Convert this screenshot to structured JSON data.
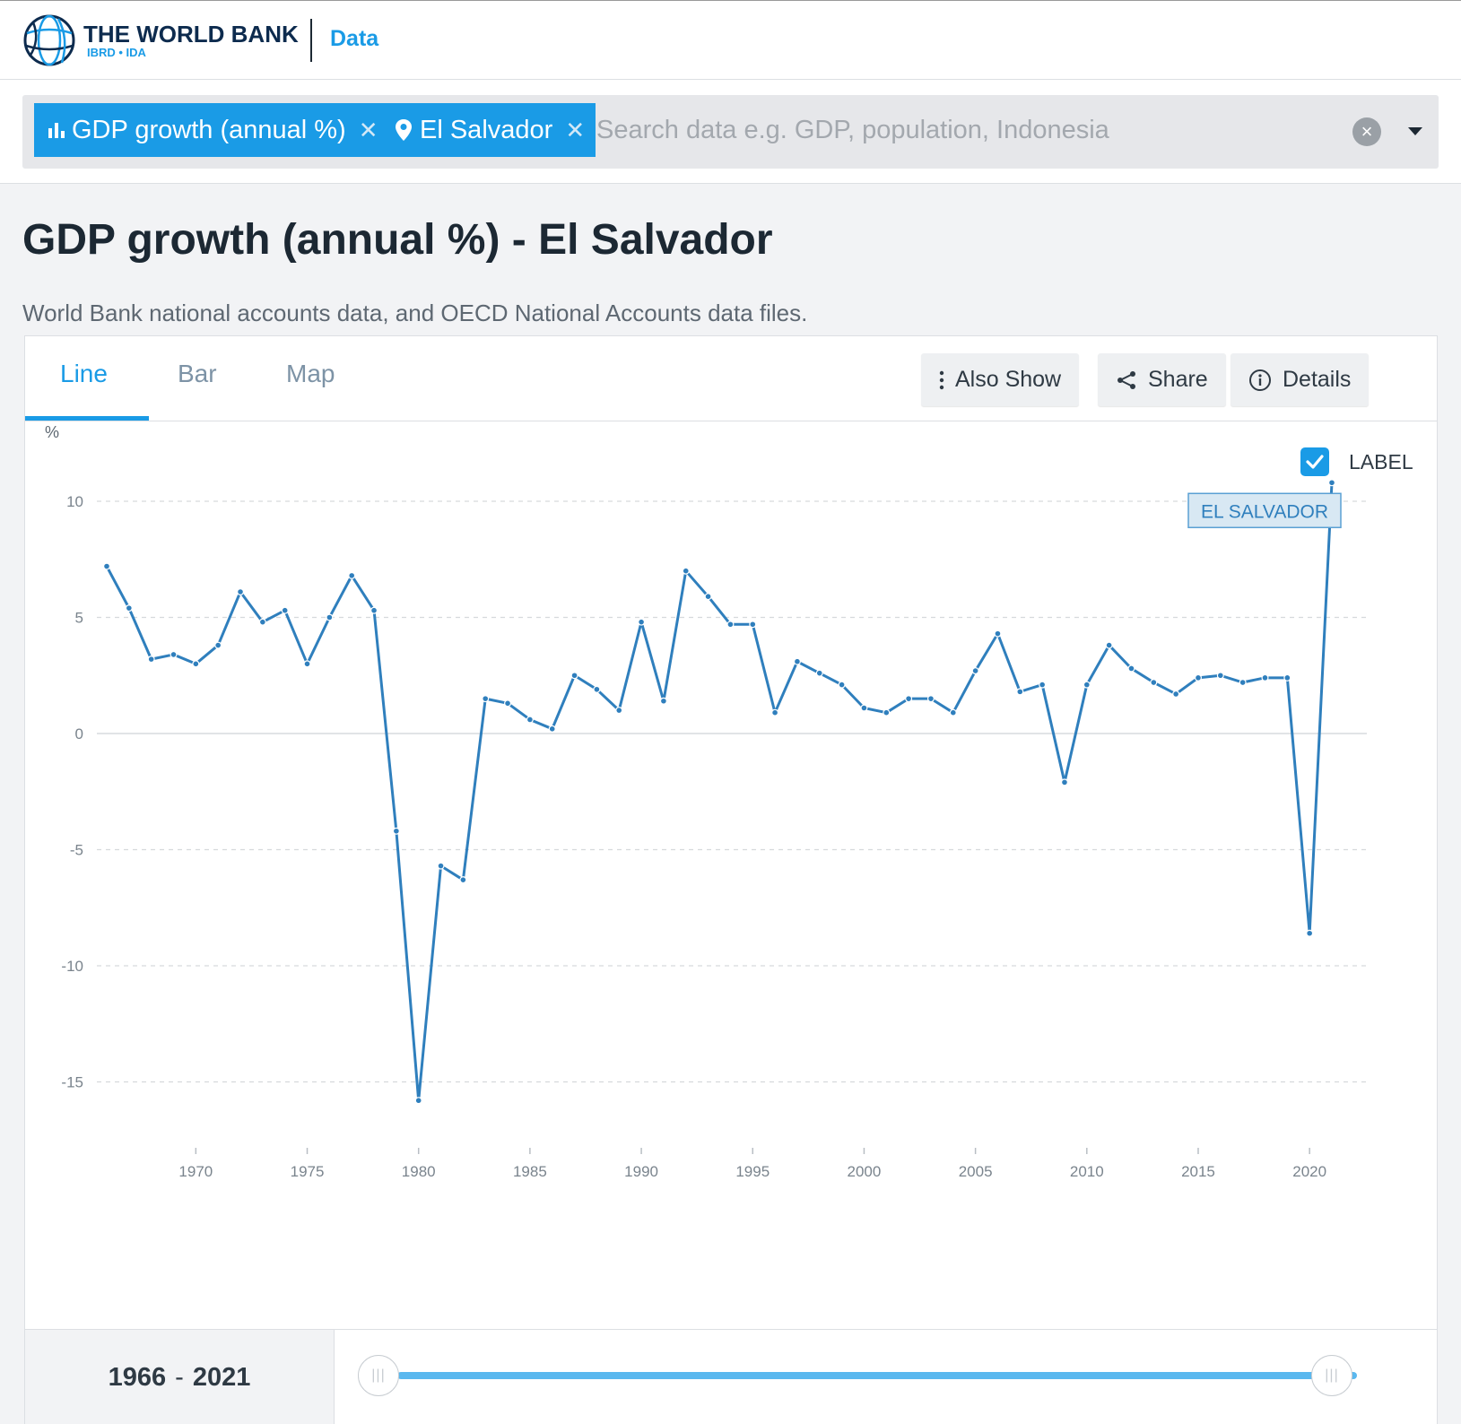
{
  "header": {
    "brand_name": "THE WORLD BANK",
    "brand_sub": "IBRD • IDA",
    "data_link": "Data"
  },
  "search": {
    "chips": [
      {
        "label": "GDP growth (annual %)",
        "icon": "bar-chart-icon"
      },
      {
        "label": "El Salvador",
        "icon": "location-pin-icon"
      }
    ],
    "placeholder": "Search data e.g. GDP, population, Indonesia"
  },
  "page": {
    "title": "GDP growth (annual %) - El Salvador",
    "source": "World Bank national accounts data, and OECD National Accounts data files."
  },
  "tabs": [
    {
      "label": "Line",
      "active": true
    },
    {
      "label": "Bar",
      "active": false
    },
    {
      "label": "Map",
      "active": false
    }
  ],
  "toolbar": {
    "also_show": "Also Show",
    "share": "Share",
    "details": "Details"
  },
  "label_toggle": {
    "text": "LABEL",
    "checked": true
  },
  "chart_data": {
    "type": "line",
    "ylabel": "%",
    "ylim": [
      -19,
      13
    ],
    "yticks": [
      10,
      5,
      0,
      -5,
      -10,
      -15
    ],
    "xlim": [
      1966,
      2021
    ],
    "xticks": [
      1970,
      1975,
      1980,
      1985,
      1990,
      1995,
      2000,
      2005,
      2010,
      2015,
      2020
    ],
    "grid": true,
    "line_color": "#2f7fbd",
    "series": [
      {
        "name": "EL SALVADOR",
        "x": [
          1966,
          1967,
          1968,
          1969,
          1970,
          1971,
          1972,
          1973,
          1974,
          1975,
          1976,
          1977,
          1978,
          1979,
          1980,
          1981,
          1982,
          1983,
          1984,
          1985,
          1986,
          1987,
          1988,
          1989,
          1990,
          1991,
          1992,
          1993,
          1994,
          1995,
          1996,
          1997,
          1998,
          1999,
          2000,
          2001,
          2002,
          2003,
          2004,
          2005,
          2006,
          2007,
          2008,
          2009,
          2010,
          2011,
          2012,
          2013,
          2014,
          2015,
          2016,
          2017,
          2018,
          2019,
          2020,
          2021
        ],
        "values": [
          7.2,
          5.4,
          3.2,
          3.4,
          3.0,
          3.8,
          6.1,
          4.8,
          5.3,
          3.0,
          5.0,
          6.8,
          5.3,
          -4.2,
          -15.8,
          -5.7,
          -6.3,
          1.5,
          1.3,
          0.6,
          0.2,
          2.5,
          1.9,
          1.0,
          4.8,
          1.4,
          7.0,
          5.9,
          4.7,
          4.7,
          0.9,
          3.1,
          2.6,
          2.1,
          1.1,
          0.9,
          1.5,
          1.5,
          0.9,
          2.7,
          4.3,
          1.8,
          2.1,
          -2.1,
          2.1,
          3.8,
          2.8,
          2.2,
          1.7,
          2.4,
          2.5,
          2.2,
          2.4,
          2.4,
          -8.6,
          10.8
        ]
      }
    ]
  },
  "range": {
    "start": "1966",
    "end": "2021",
    "separator": "-"
  },
  "colors": {
    "accent": "#1a9be6",
    "brand_navy": "#0d2b4e"
  }
}
